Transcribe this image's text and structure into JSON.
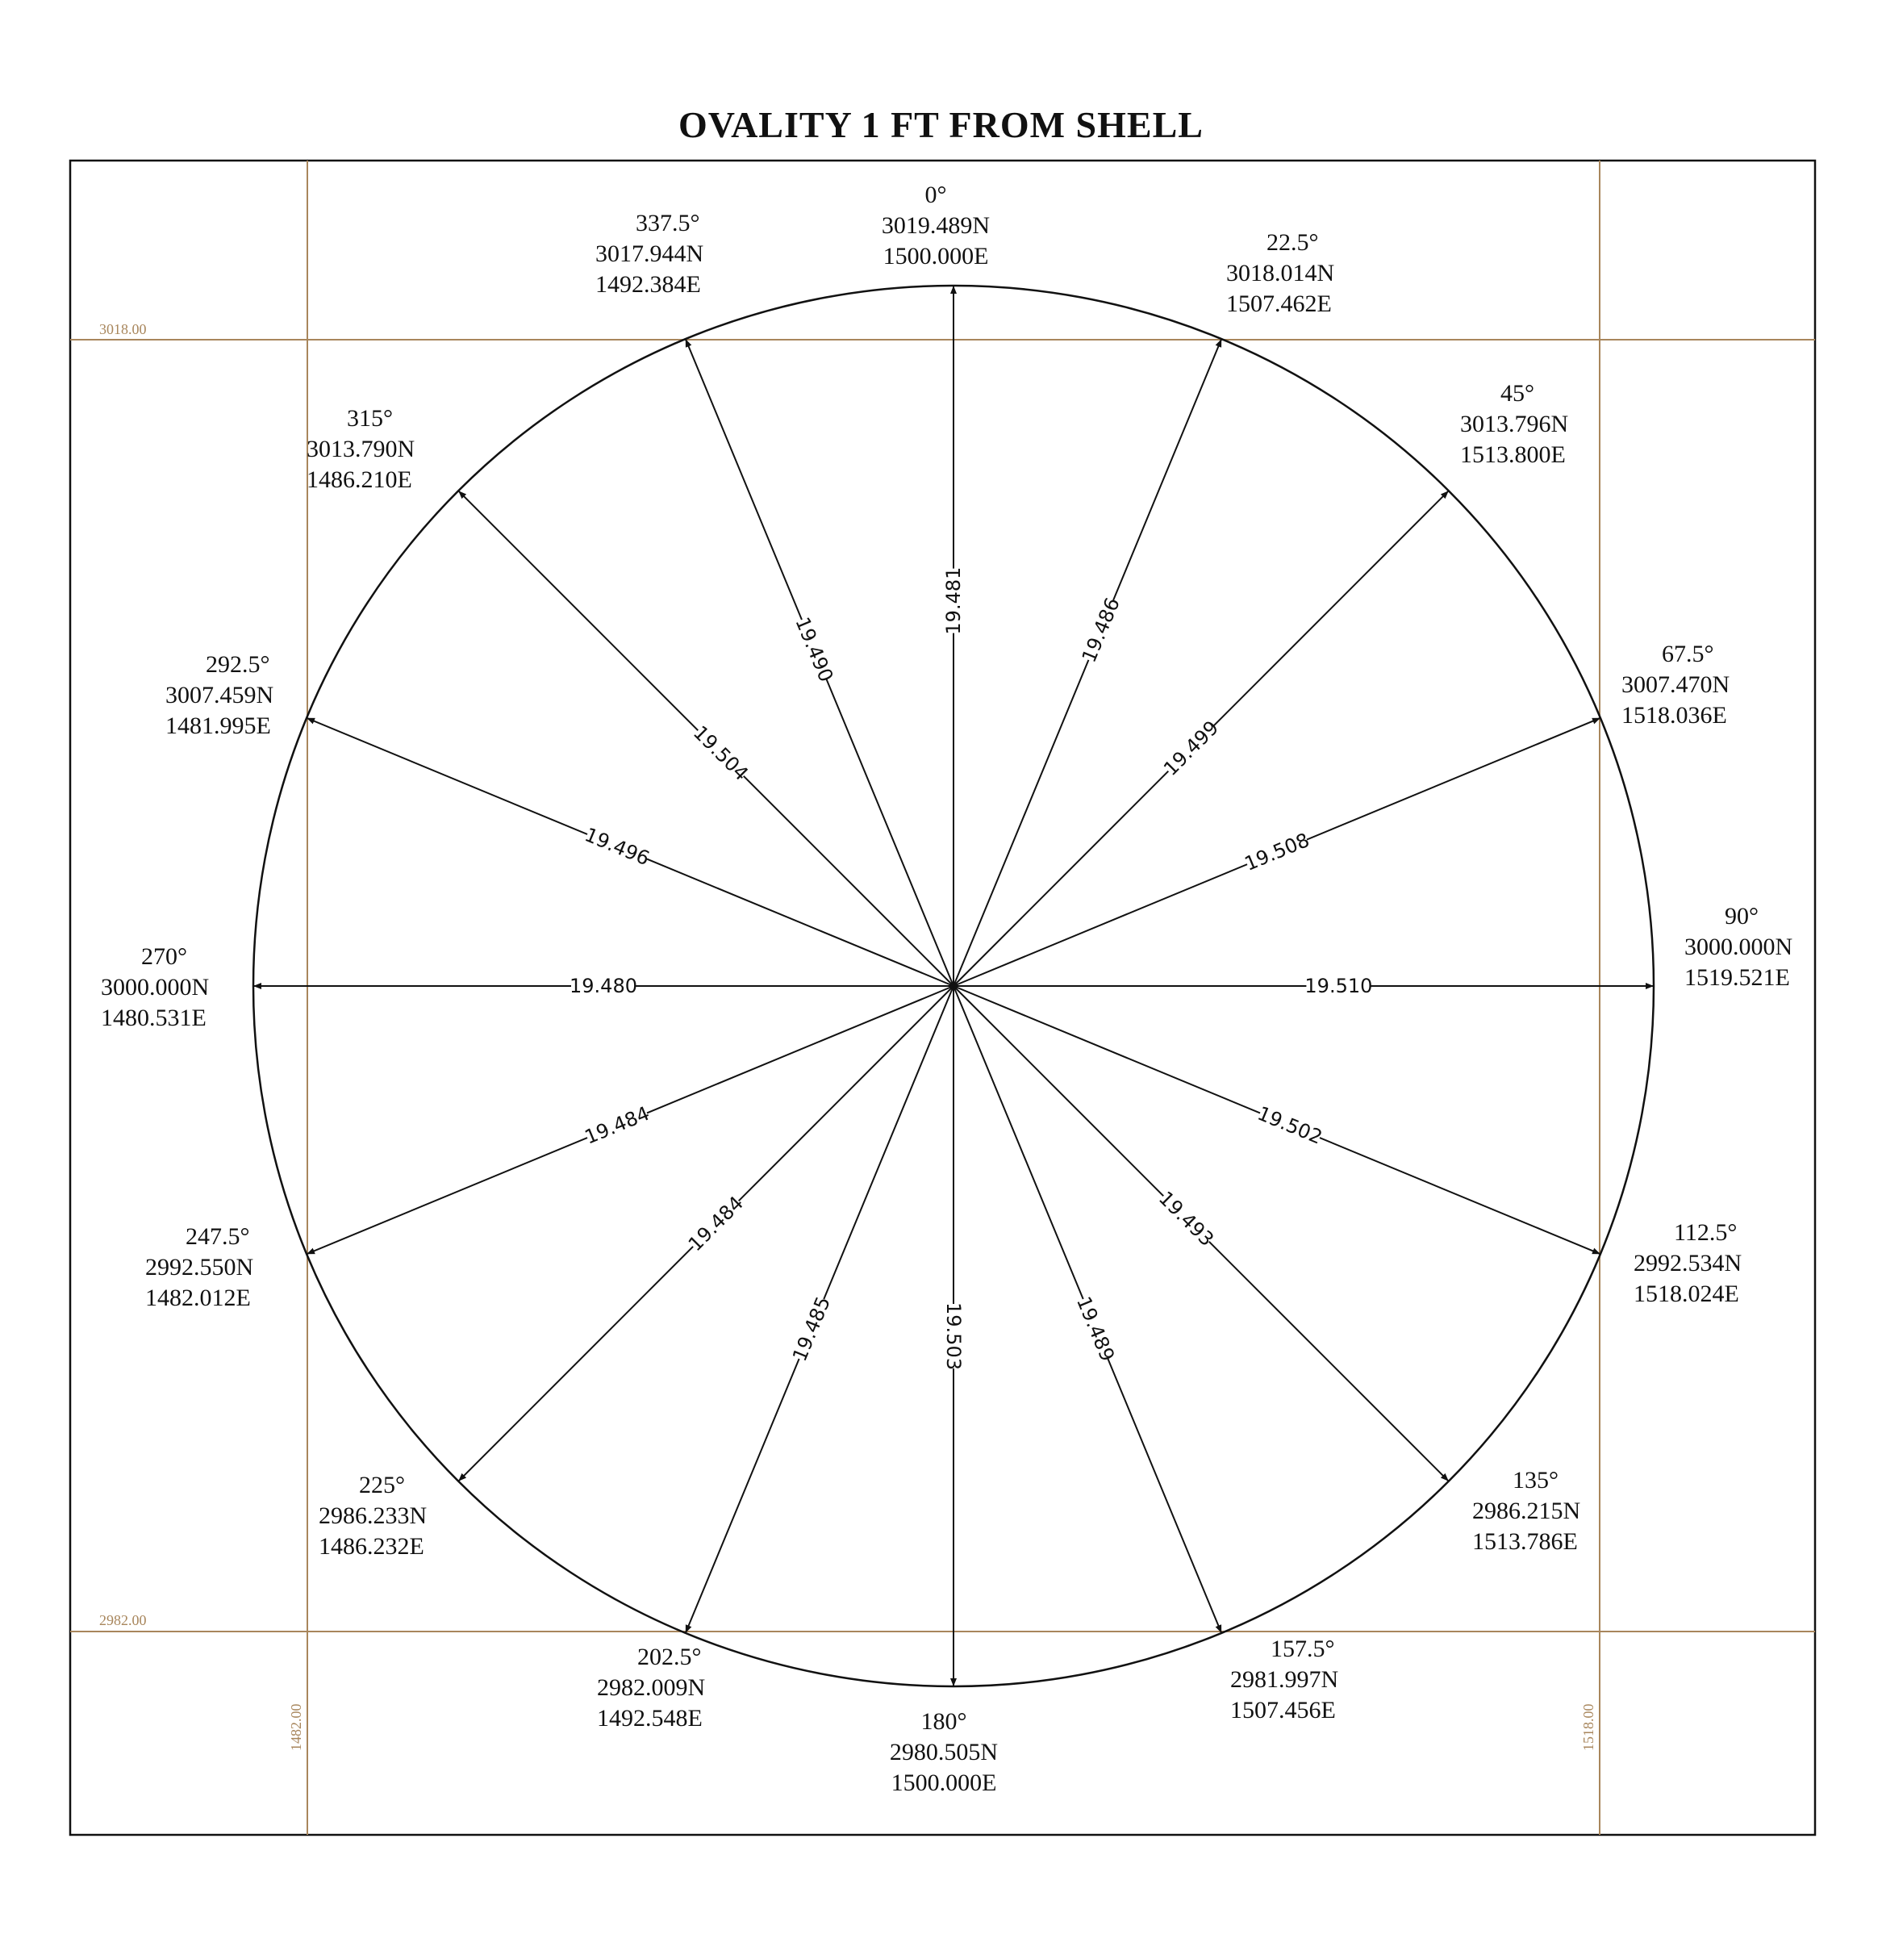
{
  "title": "OVALITY 1 FT FROM SHELL",
  "colors": {
    "line": "#111111",
    "grid": "#a8865c"
  },
  "grid": {
    "north_top": "3018.00",
    "north_bottom": "2982.00",
    "east_left": "1482.00",
    "east_right": "1518.00"
  },
  "points": [
    {
      "angle": "0°",
      "north": "3019.489N",
      "east": "1500.000E",
      "distance": "19.481"
    },
    {
      "angle": "22.5°",
      "north": "3018.014N",
      "east": "1507.462E",
      "distance": "19.486"
    },
    {
      "angle": "45°",
      "north": "3013.796N",
      "east": "1513.800E",
      "distance": "19.499"
    },
    {
      "angle": "67.5°",
      "north": "3007.470N",
      "east": "1518.036E",
      "distance": "19.508"
    },
    {
      "angle": "90°",
      "north": "3000.000N",
      "east": "1519.521E",
      "distance": "19.510"
    },
    {
      "angle": "112.5°",
      "north": "2992.534N",
      "east": "1518.024E",
      "distance": "19.502"
    },
    {
      "angle": "135°",
      "north": "2986.215N",
      "east": "1513.786E",
      "distance": "19.493"
    },
    {
      "angle": "157.5°",
      "north": "2981.997N",
      "east": "1507.456E",
      "distance": "19.489"
    },
    {
      "angle": "180°",
      "north": "2980.505N",
      "east": "1500.000E",
      "distance": "19.503"
    },
    {
      "angle": "202.5°",
      "north": "2982.009N",
      "east": "1492.548E",
      "distance": "19.485"
    },
    {
      "angle": "225°",
      "north": "2986.233N",
      "east": "1486.232E",
      "distance": "19.484"
    },
    {
      "angle": "247.5°",
      "north": "2992.550N",
      "east": "1482.012E",
      "distance": "19.484"
    },
    {
      "angle": "270°",
      "north": "3000.000N",
      "east": "1480.531E",
      "distance": "19.480"
    },
    {
      "angle": "292.5°",
      "north": "3007.459N",
      "east": "1481.995E",
      "distance": "19.496"
    },
    {
      "angle": "315°",
      "north": "3013.790N",
      "east": "1486.210E",
      "distance": "19.504"
    },
    {
      "angle": "337.5°",
      "north": "3017.944N",
      "east": "1492.384E",
      "distance": "19.490"
    }
  ]
}
